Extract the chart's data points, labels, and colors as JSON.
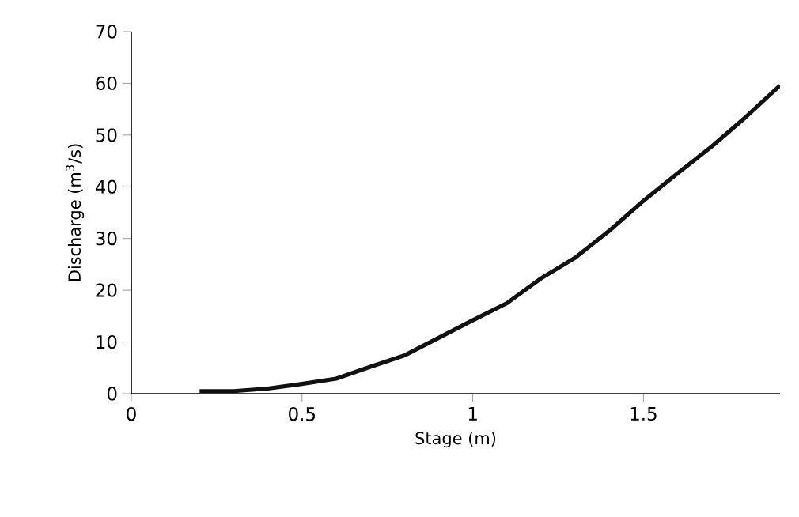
{
  "chart_data": {
    "type": "line",
    "xlabel": "Stage (m)",
    "ylabel": "Discharge (m$^{3}$/s)",
    "x": [
      0.2,
      0.3,
      0.4,
      0.5,
      0.6,
      0.7,
      0.8,
      0.9,
      1.0,
      1.1,
      1.2,
      1.3,
      1.4,
      1.5,
      1.6,
      1.7,
      1.8,
      1.9
    ],
    "series": [
      {
        "color": "#111111",
        "values": [
          0.5,
          0.5,
          1.0,
          1.9,
          2.9,
          5.2,
          7.4,
          10.8,
          14.2,
          17.5,
          22.3,
          26.3,
          31.5,
          37.3,
          42.6,
          47.8,
          53.5,
          59.6
        ]
      }
    ],
    "xlim": [
      0,
      1.9
    ],
    "ylim": [
      0,
      70
    ],
    "xticks": [
      0,
      0.5,
      1,
      1.5
    ],
    "yticks": [
      0,
      10,
      20,
      30,
      40,
      50,
      60,
      70
    ],
    "grid": false,
    "marker": "none",
    "line_style": "solid"
  }
}
